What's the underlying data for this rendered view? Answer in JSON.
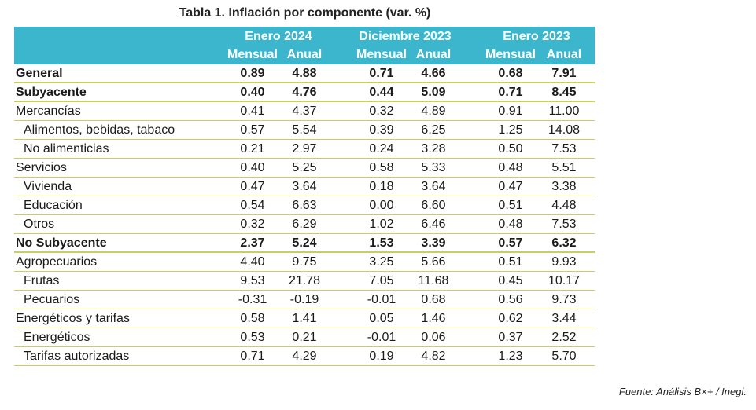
{
  "title": "Tabla 1. Inflación por componente (var. %)",
  "header": {
    "groups": [
      "Enero 2024",
      "Diciembre 2023",
      "Enero 2023"
    ],
    "subcolumns": [
      "Mensual",
      "Anual",
      "Mensual",
      "Anual",
      "Mensual",
      "Anual"
    ]
  },
  "rows": [
    {
      "label": "General",
      "bold": true,
      "indent": false,
      "values": [
        "0.89",
        "4.88",
        "0.71",
        "4.66",
        "0.68",
        "7.91"
      ]
    },
    {
      "label": "Subyacente",
      "bold": true,
      "indent": false,
      "values": [
        "0.40",
        "4.76",
        "0.44",
        "5.09",
        "0.71",
        "8.45"
      ]
    },
    {
      "label": "Mercancías",
      "bold": false,
      "indent": false,
      "values": [
        "0.41",
        "4.37",
        "0.32",
        "4.89",
        "0.91",
        "11.00"
      ]
    },
    {
      "label": "Alimentos, bebidas, tabaco",
      "bold": false,
      "indent": true,
      "values": [
        "0.57",
        "5.54",
        "0.39",
        "6.25",
        "1.25",
        "14.08"
      ]
    },
    {
      "label": "No alimenticias",
      "bold": false,
      "indent": true,
      "values": [
        "0.21",
        "2.97",
        "0.24",
        "3.28",
        "0.50",
        "7.53"
      ]
    },
    {
      "label": "Servicios",
      "bold": false,
      "indent": false,
      "values": [
        "0.40",
        "5.25",
        "0.58",
        "5.33",
        "0.48",
        "5.51"
      ]
    },
    {
      "label": "Vivienda",
      "bold": false,
      "indent": true,
      "values": [
        "0.47",
        "3.64",
        "0.18",
        "3.64",
        "0.47",
        "3.38"
      ]
    },
    {
      "label": "Educación",
      "bold": false,
      "indent": true,
      "values": [
        "0.54",
        "6.63",
        "0.00",
        "6.60",
        "0.51",
        "4.48"
      ]
    },
    {
      "label": "Otros",
      "bold": false,
      "indent": true,
      "values": [
        "0.32",
        "6.29",
        "1.02",
        "6.46",
        "0.48",
        "7.53"
      ]
    },
    {
      "label": "No Subyacente",
      "bold": true,
      "indent": false,
      "values": [
        "2.37",
        "5.24",
        "1.53",
        "3.39",
        "0.57",
        "6.32"
      ]
    },
    {
      "label": "Agropecuarios",
      "bold": false,
      "indent": false,
      "values": [
        "4.40",
        "9.75",
        "3.25",
        "5.66",
        "0.51",
        "9.93"
      ]
    },
    {
      "label": "Frutas",
      "bold": false,
      "indent": true,
      "values": [
        "9.53",
        "21.78",
        "7.05",
        "11.68",
        "0.45",
        "10.17"
      ]
    },
    {
      "label": "Pecuarios",
      "bold": false,
      "indent": true,
      "values": [
        "-0.31",
        "-0.19",
        "-0.01",
        "0.68",
        "0.56",
        "9.73"
      ]
    },
    {
      "label": "Energéticos y tarifas",
      "bold": false,
      "indent": false,
      "values": [
        "0.58",
        "1.41",
        "0.05",
        "1.46",
        "0.62",
        "3.44"
      ]
    },
    {
      "label": "Energéticos",
      "bold": false,
      "indent": true,
      "values": [
        "0.53",
        "0.21",
        "-0.01",
        "0.06",
        "0.37",
        "2.52"
      ]
    },
    {
      "label": "Tarifas autorizadas",
      "bold": false,
      "indent": true,
      "values": [
        "0.71",
        "4.29",
        "0.19",
        "4.82",
        "1.23",
        "5.70"
      ]
    }
  ],
  "source": "Fuente: Análisis B×+ /  Inegi."
}
